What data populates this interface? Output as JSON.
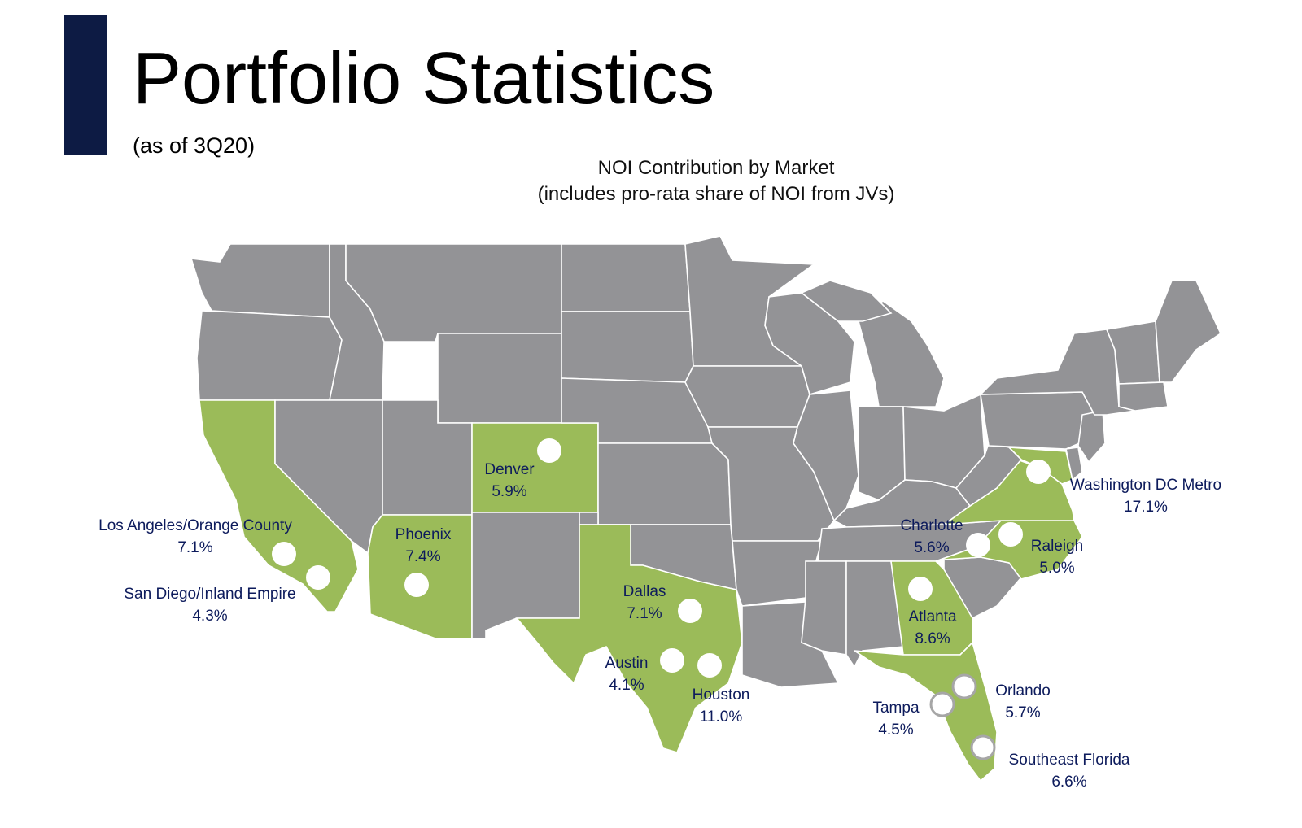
{
  "header": {
    "title": "Portfolio Statistics",
    "subtitle": "(as of 3Q20)",
    "accent_color": "#0d1b44"
  },
  "map": {
    "title_line1": "NOI Contribution by Market",
    "title_line2": "(includes pro-rata share of NOI from JVs)",
    "base_color": "#939396",
    "highlight_color": "#9bbb59",
    "label_color": "#0d1b5c",
    "highlighted_states": [
      "California",
      "Arizona",
      "Colorado",
      "Texas",
      "Georgia",
      "Florida",
      "North Carolina",
      "Virginia",
      "Maryland"
    ],
    "markets": [
      {
        "name": "Los Angeles/Orange County",
        "share": "7.1%"
      },
      {
        "name": "San Diego/Inland Empire",
        "share": "4.3%"
      },
      {
        "name": "Phoenix",
        "share": "7.4%"
      },
      {
        "name": "Denver",
        "share": "5.9%"
      },
      {
        "name": "Dallas",
        "share": "7.1%"
      },
      {
        "name": "Austin",
        "share": "4.1%"
      },
      {
        "name": "Houston",
        "share": "11.0%"
      },
      {
        "name": "Atlanta",
        "share": "8.6%"
      },
      {
        "name": "Charlotte",
        "share": "5.6%"
      },
      {
        "name": "Raleigh",
        "share": "5.0%"
      },
      {
        "name": "Washington DC Metro",
        "share": "17.1%"
      },
      {
        "name": "Tampa",
        "share": "4.5%"
      },
      {
        "name": "Orlando",
        "share": "5.7%"
      },
      {
        "name": "Southeast Florida",
        "share": "6.6%"
      }
    ]
  }
}
